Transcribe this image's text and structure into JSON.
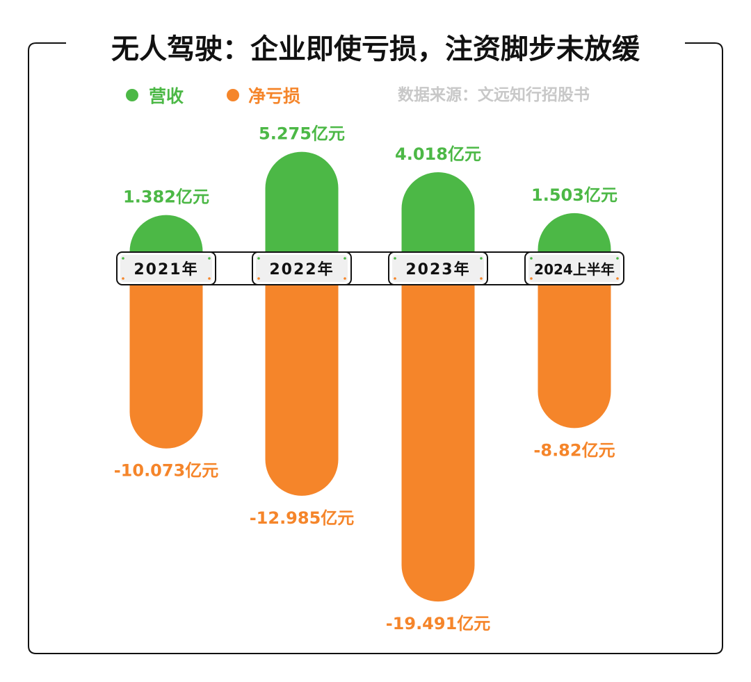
{
  "chart_data": {
    "type": "bar",
    "title": "无人驾驶：企业即使亏损，注资脚步未放缓",
    "source": "数据来源：文远知行招股书",
    "categories": [
      "2021年",
      "2022年",
      "2023年",
      "2024上半年"
    ],
    "unit": "亿元",
    "series": [
      {
        "name": "营收",
        "color": "#4cb846",
        "values": [
          1.382,
          5.275,
          4.018,
          1.503
        ],
        "labels": [
          "1.382亿元",
          "5.275亿元",
          "4.018亿元",
          "1.503亿元"
        ]
      },
      {
        "name": "净亏损",
        "color": "#f5852a",
        "values": [
          -10.073,
          -12.985,
          -19.491,
          -8.82
        ],
        "labels": [
          "-10.073亿元",
          "-12.985亿元",
          "-19.491亿元",
          "-8.82亿元"
        ]
      }
    ],
    "legend": "top-left",
    "grid": false
  }
}
